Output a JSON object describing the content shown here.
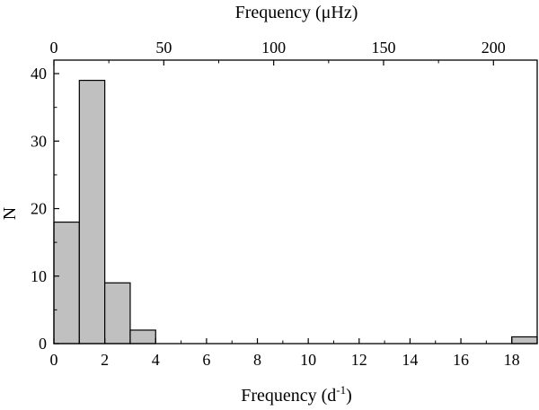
{
  "chart_data": {
    "type": "bar",
    "ylabel": "N",
    "xlabel_bottom": {
      "text": "Frequency (d",
      "superscript": "-1",
      "close": ")"
    },
    "xlabel_top": "Frequency (μHz)",
    "xlim": [
      0,
      19
    ],
    "ylim": [
      0,
      42
    ],
    "x_ticks": [
      0,
      2,
      4,
      6,
      8,
      10,
      12,
      14,
      16,
      18
    ],
    "y_ticks": [
      0,
      10,
      20,
      30,
      40
    ],
    "top_ticks": [
      0,
      50,
      100,
      150,
      200
    ],
    "top_axis_unit_per_bottom_unit": 11.574,
    "bin_width": 1,
    "bins": [
      {
        "x0": 0,
        "x1": 1,
        "value": 18
      },
      {
        "x0": 1,
        "x1": 2,
        "value": 39
      },
      {
        "x0": 2,
        "x1": 3,
        "value": 9
      },
      {
        "x0": 3,
        "x1": 4,
        "value": 2
      },
      {
        "x0": 18,
        "x1": 19,
        "value": 1
      }
    ],
    "bar_color": "#c0c0c0",
    "edge_color": "#000000",
    "grid": false
  }
}
